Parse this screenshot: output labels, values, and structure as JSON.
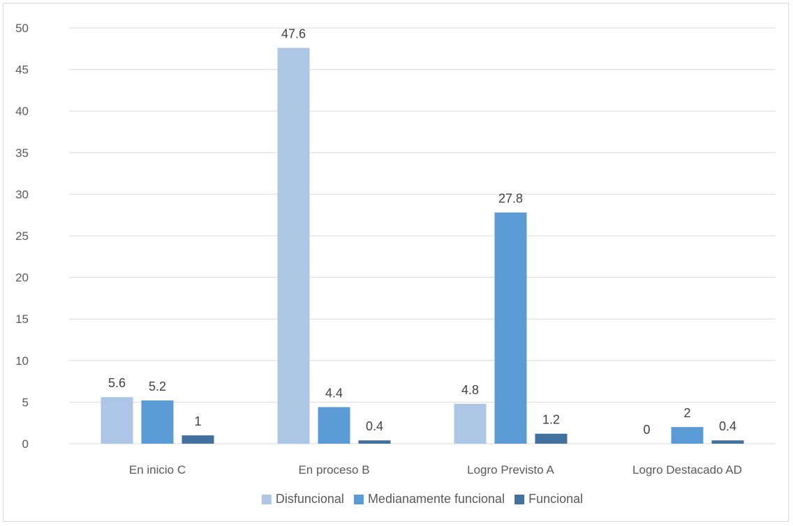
{
  "chart_data": {
    "type": "bar",
    "title": "",
    "xlabel": "",
    "ylabel": "",
    "categories": [
      "En inicio C",
      "En proceso B",
      "Logro Previsto A",
      "Logro Destacado AD"
    ],
    "series": [
      {
        "name": "Disfuncional",
        "values": [
          5.6,
          47.6,
          4.8,
          0
        ],
        "labels": [
          "5.6",
          "47.6",
          "4.8",
          "0"
        ],
        "color": "#adc6e6"
      },
      {
        "name": "Medianamente funcional",
        "values": [
          5.2,
          4.4,
          27.8,
          2
        ],
        "labels": [
          "5.2",
          "4.4",
          "27.8",
          "2"
        ],
        "color": "#5b9bd5"
      },
      {
        "name": "Funcional",
        "values": [
          1,
          0.4,
          1.2,
          0.4
        ],
        "labels": [
          "1",
          "0.4",
          "1.2",
          "0.4"
        ],
        "color": "#41719c"
      }
    ],
    "ylim": [
      0,
      50
    ],
    "yticks": [
      "0",
      "5",
      "10",
      "15",
      "20",
      "25",
      "30",
      "35",
      "40",
      "45",
      "50"
    ],
    "grid": true,
    "legend_position": "bottom",
    "gridline_color": "#d9d9d9"
  }
}
